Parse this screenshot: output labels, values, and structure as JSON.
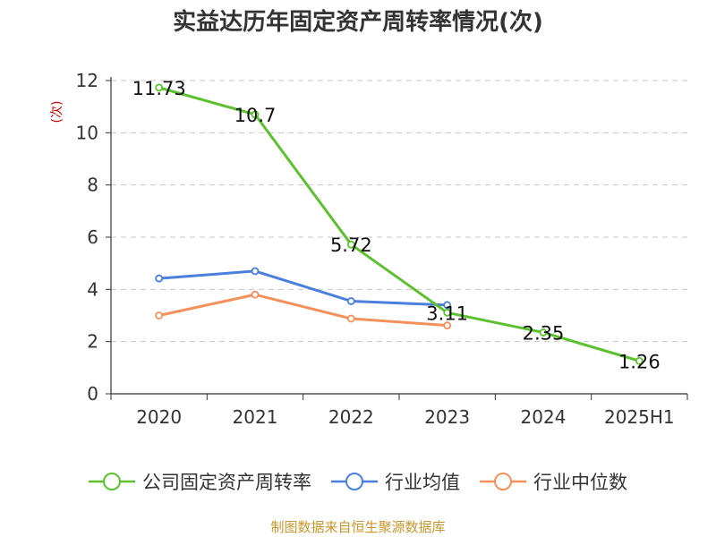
{
  "chart_data": {
    "type": "line",
    "title": "实益达历年固定资产周转率情况(次)",
    "ylabel": "(次)",
    "xlabel": "",
    "categories": [
      "2020",
      "2021",
      "2022",
      "2023",
      "2024",
      "2025H1"
    ],
    "ylim": [
      0,
      12
    ],
    "yticks": [
      0,
      2,
      4,
      6,
      8,
      10,
      12
    ],
    "grid": true,
    "legend_position": "bottom",
    "series": [
      {
        "name": "公司固定资产周转率",
        "color": "#5cc12e",
        "values": [
          11.73,
          10.7,
          5.72,
          3.11,
          2.35,
          1.26
        ],
        "labels": [
          "11.73",
          "10.7",
          "5.72",
          "3.11",
          "2.35",
          "1.26"
        ]
      },
      {
        "name": "行业均值",
        "color": "#4a7fdb",
        "values": [
          4.42,
          4.7,
          3.55,
          3.4,
          null,
          null
        ]
      },
      {
        "name": "行业中位数",
        "color": "#f4915a",
        "values": [
          3.0,
          3.8,
          2.88,
          2.62,
          null,
          null
        ]
      }
    ]
  },
  "source": "制图数据来自恒生聚源数据库"
}
